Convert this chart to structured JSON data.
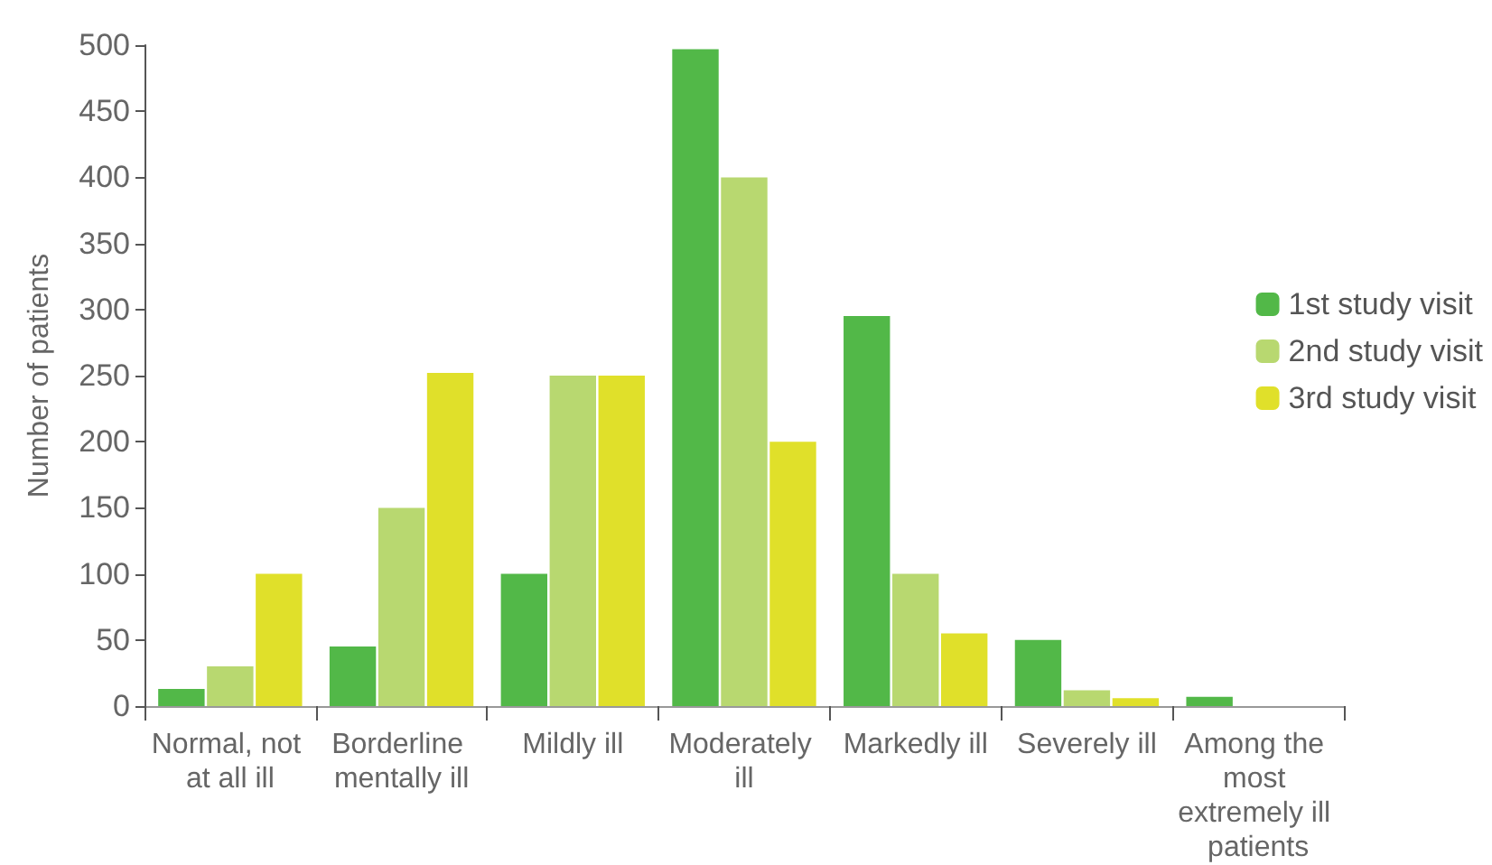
{
  "chart_data": {
    "type": "bar",
    "ylabel": "Number of patients",
    "categories": [
      "Normal, not at all ill",
      "Borderline mentally ill",
      "Mildly ill",
      "Moderately ill",
      "Markedly ill",
      "Severely ill",
      "Among the most extremely ill patients"
    ],
    "series": [
      {
        "name": "1st study visit",
        "color": "#52b848",
        "values": [
          13,
          45,
          100,
          497,
          295,
          50,
          7
        ]
      },
      {
        "name": "2nd study visit",
        "color": "#b8d870",
        "values": [
          30,
          150,
          250,
          400,
          100,
          12,
          0
        ]
      },
      {
        "name": "3rd study visit",
        "color": "#e0e02a",
        "values": [
          100,
          252,
          250,
          200,
          55,
          6,
          0
        ]
      }
    ],
    "ylim": [
      0,
      500
    ],
    "yticks": [
      0,
      50,
      100,
      150,
      200,
      250,
      300,
      350,
      400,
      450,
      500
    ],
    "grid": false,
    "legend": "right"
  }
}
